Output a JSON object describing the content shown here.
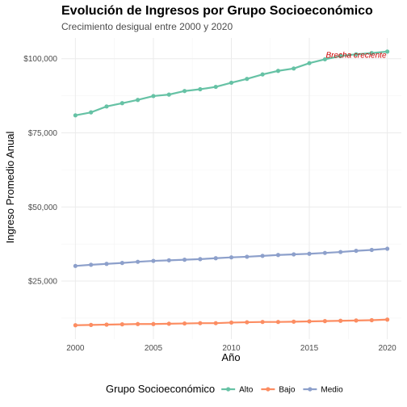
{
  "chart_data": {
    "type": "line",
    "title": "Evolución de Ingresos por Grupo Socioeconómico",
    "subtitle": "Crecimiento desigual entre 2000 y 2020",
    "xlabel": "Año",
    "ylabel": "Ingreso Promedio Anual",
    "xlim": [
      1999.1,
      2020.9
    ],
    "ylim": [
      5400,
      107000
    ],
    "x_ticks": [
      2000,
      2005,
      2010,
      2015,
      2020
    ],
    "x_tick_labels": [
      "2000",
      "2005",
      "2010",
      "2015",
      "2020"
    ],
    "y_ticks": [
      25000,
      50000,
      75000,
      100000
    ],
    "y_tick_labels": [
      "$25,000",
      "$50,000",
      "$75,000",
      "$100,000"
    ],
    "grid": true,
    "legend_title": "Grupo Socioeconómico",
    "legend_position": "bottom",
    "x": [
      2000,
      2001,
      2002,
      2003,
      2004,
      2005,
      2006,
      2007,
      2008,
      2009,
      2010,
      2011,
      2012,
      2013,
      2014,
      2015,
      2016,
      2017,
      2018,
      2019,
      2020
    ],
    "series": [
      {
        "name": "Alto",
        "color": "#66c2a5",
        "values": [
          80900,
          81900,
          83900,
          85000,
          86100,
          87400,
          87900,
          89100,
          89700,
          90500,
          91900,
          93200,
          94700,
          95900,
          96700,
          98500,
          99800,
          100900,
          101500,
          101900,
          102400
        ]
      },
      {
        "name": "Bajo",
        "color": "#fc8d62",
        "values": [
          10100,
          10200,
          10300,
          10400,
          10500,
          10500,
          10600,
          10700,
          10800,
          10800,
          11000,
          11100,
          11200,
          11200,
          11300,
          11400,
          11500,
          11600,
          11700,
          11800,
          12000
        ]
      },
      {
        "name": "Medio",
        "color": "#8da0cb",
        "values": [
          30100,
          30500,
          30800,
          31100,
          31500,
          31800,
          32000,
          32200,
          32400,
          32700,
          33000,
          33200,
          33500,
          33800,
          34000,
          34200,
          34500,
          34800,
          35200,
          35500,
          35900
        ]
      }
    ],
    "annotations": [
      {
        "text": "Brecha creciente",
        "x": 2018,
        "y": 100900,
        "color": "#cc0000"
      }
    ]
  }
}
